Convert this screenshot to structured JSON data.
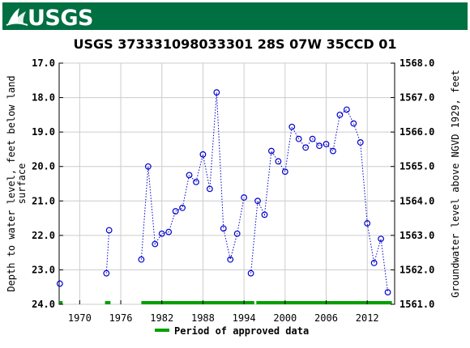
{
  "header": {
    "logo_text": "USGS",
    "brand_color": "#006f41"
  },
  "chart_data": {
    "type": "scatter",
    "title": "USGS 373331098033301 28S 07W 35CCD 01",
    "ylabel_left": "Depth to water level, feet below land surface",
    "ylabel_left_lines": [
      "Depth to water level, feet below land",
      "surface"
    ],
    "ylabel_right": "Groundwater level above NGVD 1929, feet",
    "xlim": [
      1967,
      2016
    ],
    "ylim_left": [
      17.0,
      24.0
    ],
    "ylim_right": [
      1568.0,
      1561.0
    ],
    "x_ticks": [
      1970,
      1976,
      1982,
      1988,
      1994,
      2000,
      2006,
      2012
    ],
    "x_tick_labels": [
      "1970",
      "1976",
      "1982",
      "1988",
      "1994",
      "2000",
      "2006",
      "2012"
    ],
    "y_left_ticks": [
      17.0,
      18.0,
      19.0,
      20.0,
      21.0,
      22.0,
      23.0,
      24.0
    ],
    "y_left_tick_labels": [
      "17.0",
      "18.0",
      "19.0",
      "20.0",
      "21.0",
      "22.0",
      "23.0",
      "24.0"
    ],
    "y_right_ticks": [
      1568.0,
      1567.0,
      1566.0,
      1565.0,
      1564.0,
      1563.0,
      1562.0,
      1561.0
    ],
    "y_right_tick_labels": [
      "1568.0",
      "1567.0",
      "1566.0",
      "1565.0",
      "1564.0",
      "1563.0",
      "1562.0",
      "1561.0"
    ],
    "grid": true,
    "series": [
      {
        "marker": "open-circle",
        "color": "#0000cc",
        "segments": [
          {
            "x": [
              1967.1
            ],
            "y": [
              23.4
            ]
          },
          {
            "x": [
              1973.9,
              1974.3
            ],
            "y": [
              23.1,
              21.85
            ]
          },
          {
            "x": [
              1979.0,
              1980.0,
              1981.0,
              1982.0,
              1983.0,
              1984.0,
              1985.0,
              1986.0,
              1987.0,
              1988.0,
              1989.0,
              1990.0,
              1991.0,
              1992.0,
              1993.0,
              1994.0
            ],
            "y": [
              22.7,
              20.0,
              22.25,
              21.95,
              21.9,
              21.3,
              21.2,
              20.25,
              20.45,
              19.65,
              20.65,
              17.85,
              21.8,
              22.7,
              21.95,
              20.9
            ]
          },
          {
            "x": [
              1995.0,
              1996.0,
              1997.0,
              1998.0,
              1999.0,
              2000.0,
              2001.0,
              2002.0,
              2003.0,
              2004.0,
              2005.0,
              2006.0,
              2007.0,
              2008.0,
              2009.0,
              2010.0,
              2011.0,
              2012.0,
              2013.0,
              2014.0,
              2015.0
            ],
            "y": [
              23.1,
              21.0,
              21.4,
              19.55,
              19.85,
              20.15,
              18.85,
              19.2,
              19.45,
              19.2,
              19.4,
              19.35,
              19.55,
              18.5,
              18.35,
              18.75,
              19.3,
              21.65,
              22.8,
              22.1,
              23.65
            ]
          }
        ]
      }
    ],
    "approved_periods": [
      [
        1967.0,
        1967.5
      ],
      [
        1973.7,
        1974.5
      ],
      [
        1979.0,
        1995.5
      ],
      [
        1995.8,
        2015.6
      ]
    ],
    "approved_color": "#00a000",
    "legend": {
      "label": "Period of approved data",
      "position": "bottom-center"
    }
  }
}
